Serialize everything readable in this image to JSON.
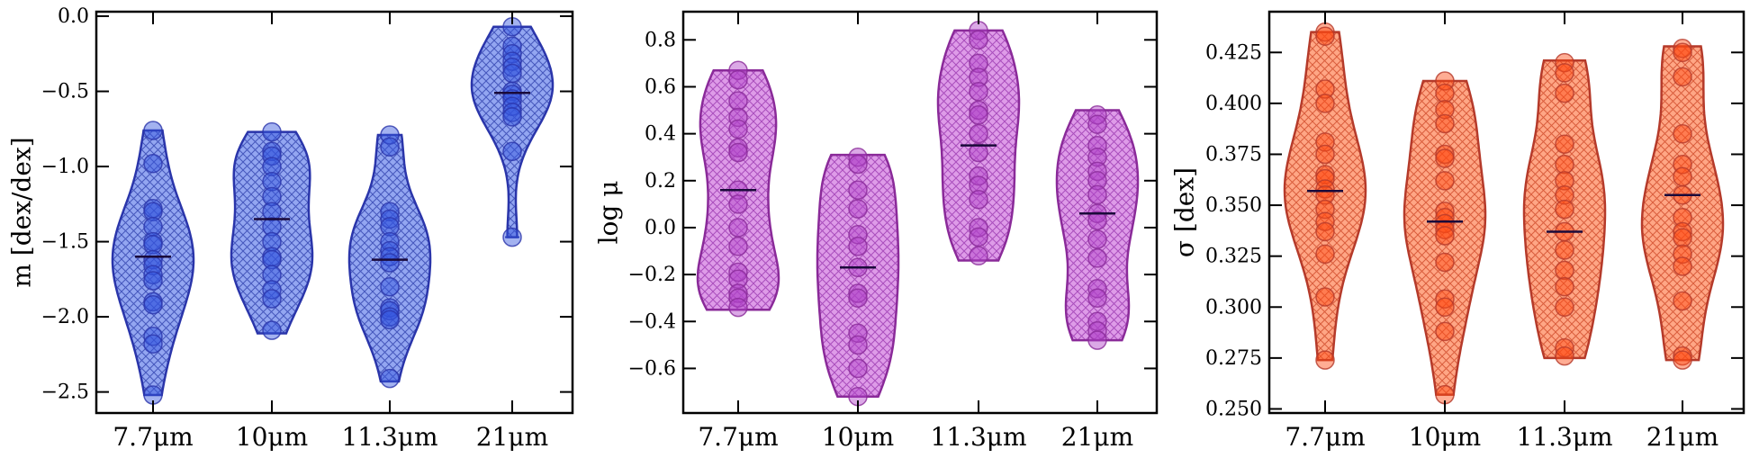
{
  "chart_data": [
    {
      "type": "violin",
      "ylabel": "m [dex/dex]",
      "ylim": [
        -2.64,
        0.03
      ],
      "yticks": [
        0.0,
        -0.5,
        -1.0,
        -1.5,
        -2.0,
        -2.5
      ],
      "ytick_labels": [
        "0.0",
        "−0.5",
        "−1.0",
        "−1.5",
        "−2.0",
        "−2.5"
      ],
      "categories": [
        "7.7μm",
        "10μm",
        "11.3μm",
        "21μm"
      ],
      "color": "#3355dd",
      "edge_color": "#2a35aa",
      "medians": [
        -1.6,
        -1.35,
        -1.62,
        -0.51
      ],
      "ranges": [
        [
          -2.52,
          -0.76
        ],
        [
          -2.11,
          -0.77
        ],
        [
          -2.43,
          -0.79
        ],
        [
          -1.47,
          -0.07
        ]
      ],
      "points": [
        [
          -0.76,
          -0.98,
          -1.28,
          -1.3,
          -1.4,
          -1.5,
          -1.52,
          -1.62,
          -1.66,
          -1.72,
          -1.76,
          -1.9,
          -1.92,
          -2.13,
          -2.18,
          -2.52
        ],
        [
          -0.77,
          -0.9,
          -0.93,
          -1.0,
          -1.1,
          -1.2,
          -1.3,
          -1.4,
          -1.5,
          -1.6,
          -1.62,
          -1.72,
          -1.82,
          -1.88,
          -2.09
        ],
        [
          -0.79,
          -0.87,
          -1.3,
          -1.35,
          -1.4,
          -1.5,
          -1.56,
          -1.6,
          -1.64,
          -1.8,
          -1.94,
          -1.96,
          -2.0,
          -2.02,
          -2.41
        ],
        [
          -0.07,
          -0.2,
          -0.25,
          -0.3,
          -0.34,
          -0.38,
          -0.5,
          -0.52,
          -0.55,
          -0.6,
          -0.64,
          -0.67,
          -0.9,
          -1.47
        ]
      ]
    },
    {
      "type": "violin",
      "ylabel": "log μ",
      "ylim": [
        -0.79,
        0.92
      ],
      "yticks": [
        0.8,
        0.6,
        0.4,
        0.2,
        0.0,
        -0.2,
        -0.4,
        -0.6
      ],
      "ytick_labels": [
        "0.8",
        "0.6",
        "0.4",
        "0.2",
        "0.0",
        "−0.2",
        "−0.4",
        "−0.6"
      ],
      "categories": [
        "7.7μm",
        "10μm",
        "11.3μm",
        "21μm"
      ],
      "color": "#b040c8",
      "edge_color": "#8a2a99",
      "medians": [
        0.16,
        -0.17,
        0.35,
        0.06
      ],
      "ranges": [
        [
          -0.35,
          0.67
        ],
        [
          -0.72,
          0.31
        ],
        [
          -0.14,
          0.84
        ],
        [
          -0.48,
          0.5
        ]
      ],
      "points": [
        [
          0.67,
          0.63,
          0.54,
          0.47,
          0.42,
          0.34,
          0.32,
          0.16,
          0.1,
          0.0,
          -0.08,
          -0.19,
          -0.22,
          -0.28,
          -0.3,
          -0.34
        ],
        [
          0.3,
          0.27,
          0.16,
          0.08,
          -0.03,
          -0.08,
          -0.17,
          -0.28,
          -0.3,
          -0.45,
          -0.5,
          -0.6,
          -0.72
        ],
        [
          0.84,
          0.8,
          0.7,
          0.64,
          0.58,
          0.5,
          0.48,
          0.4,
          0.32,
          0.22,
          0.18,
          0.12,
          0.0,
          -0.04,
          -0.12
        ],
        [
          0.48,
          0.44,
          0.35,
          0.3,
          0.24,
          0.2,
          0.14,
          0.06,
          0.03,
          -0.05,
          -0.13,
          -0.26,
          -0.3,
          -0.4,
          -0.44,
          -0.48
        ]
      ]
    },
    {
      "type": "violin",
      "ylabel": "σ [dex]",
      "ylim": [
        0.248,
        0.445
      ],
      "yticks": [
        0.425,
        0.4,
        0.375,
        0.35,
        0.325,
        0.3,
        0.275,
        0.25
      ],
      "ytick_labels": [
        "0.425",
        "0.400",
        "0.375",
        "0.350",
        "0.325",
        "0.300",
        "0.275",
        "0.250"
      ],
      "categories": [
        "7.7μm",
        "10μm",
        "11.3μm",
        "21μm"
      ],
      "color": "#ff4a12",
      "edge_color": "#b53a2a",
      "medians": [
        0.357,
        0.342,
        0.337,
        0.355
      ],
      "ranges": [
        [
          0.274,
          0.435
        ],
        [
          0.257,
          0.411
        ],
        [
          0.275,
          0.421
        ],
        [
          0.274,
          0.428
        ]
      ],
      "points": [
        [
          0.435,
          0.433,
          0.407,
          0.4,
          0.381,
          0.375,
          0.365,
          0.363,
          0.358,
          0.355,
          0.348,
          0.342,
          0.337,
          0.326,
          0.305,
          0.274
        ],
        [
          0.411,
          0.405,
          0.397,
          0.39,
          0.375,
          0.373,
          0.362,
          0.347,
          0.344,
          0.341,
          0.338,
          0.335,
          0.322,
          0.304,
          0.3,
          0.288,
          0.257
        ],
        [
          0.42,
          0.415,
          0.405,
          0.38,
          0.37,
          0.362,
          0.355,
          0.348,
          0.337,
          0.328,
          0.318,
          0.31,
          0.3,
          0.28,
          0.276
        ],
        [
          0.427,
          0.425,
          0.413,
          0.385,
          0.37,
          0.364,
          0.355,
          0.344,
          0.337,
          0.334,
          0.326,
          0.32,
          0.303,
          0.276,
          0.274
        ]
      ]
    }
  ]
}
